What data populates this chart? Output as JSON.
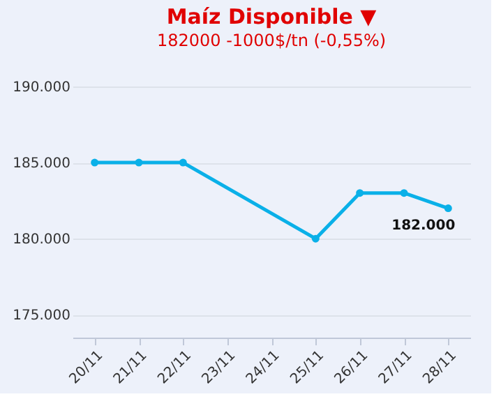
{
  "chart_data": {
    "type": "line",
    "title": "Maíz Disponible ▼",
    "subtitle": "182000 -1000$/tn (-0,55%)",
    "categories": [
      "20/11",
      "21/11",
      "22/11",
      "23/11",
      "24/11",
      "25/11",
      "26/11",
      "27/11",
      "28/11"
    ],
    "series": [
      {
        "color": "#0ab0e8",
        "values": [
          185000,
          185000,
          185000,
          null,
          null,
          180000,
          183000,
          183000,
          182000
        ]
      }
    ],
    "ylim": [
      173500,
      190000
    ],
    "yticks": [
      {
        "value": 175000,
        "label": "175.000"
      },
      {
        "value": 180000,
        "label": "180.000"
      },
      {
        "value": 185000,
        "label": "185.000"
      },
      {
        "value": 190000,
        "label": "190.000"
      }
    ],
    "grid": "y",
    "marker": "circle",
    "line_style": "solid",
    "annotations": [
      {
        "text": "182.000",
        "x": "28/11",
        "y": 182000
      }
    ]
  }
}
